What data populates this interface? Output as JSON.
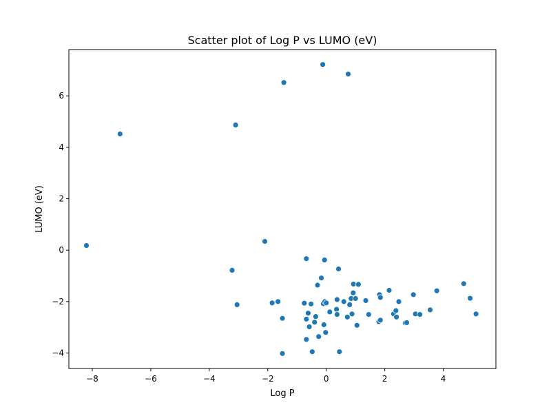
{
  "chart_data": {
    "type": "scatter",
    "title": "Scatter plot of Log P vs LUMO (eV)",
    "xlabel": "Log P",
    "ylabel": "LUMO (eV)",
    "xlim": [
      -8.8,
      5.8
    ],
    "ylim": [
      -4.6,
      7.8
    ],
    "xticks": [
      -8,
      -6,
      -4,
      -2,
      0,
      2,
      4
    ],
    "yticks": [
      -4,
      -2,
      0,
      2,
      4,
      6
    ],
    "tick_labels_x": [
      "−8",
      "−6",
      "−4",
      "−2",
      "0",
      "2",
      "4"
    ],
    "tick_labels_y": [
      "−4",
      "−2",
      "0",
      "2",
      "4",
      "6"
    ],
    "grid": false,
    "marker_color": "#1f77b4",
    "points": [
      {
        "x": -8.2,
        "y": 0.18
      },
      {
        "x": -7.05,
        "y": 4.52
      },
      {
        "x": -3.1,
        "y": 4.87
      },
      {
        "x": -3.22,
        "y": -0.78
      },
      {
        "x": -3.05,
        "y": -2.12
      },
      {
        "x": -2.1,
        "y": 0.34
      },
      {
        "x": -1.45,
        "y": 6.52
      },
      {
        "x": -0.12,
        "y": 7.22
      },
      {
        "x": 0.75,
        "y": 6.85
      },
      {
        "x": -1.85,
        "y": -2.05
      },
      {
        "x": -1.65,
        "y": -2.0
      },
      {
        "x": -1.5,
        "y": -2.65
      },
      {
        "x": -1.5,
        "y": -4.02
      },
      {
        "x": -0.75,
        "y": -2.06
      },
      {
        "x": -0.68,
        "y": -0.33
      },
      {
        "x": -0.68,
        "y": -2.68
      },
      {
        "x": -0.68,
        "y": -3.47
      },
      {
        "x": -0.62,
        "y": -2.45
      },
      {
        "x": -0.58,
        "y": -2.98
      },
      {
        "x": -0.52,
        "y": -2.09
      },
      {
        "x": -0.48,
        "y": -3.95
      },
      {
        "x": -0.4,
        "y": -2.8
      },
      {
        "x": -0.36,
        "y": -2.58
      },
      {
        "x": -0.3,
        "y": -1.36
      },
      {
        "x": -0.26,
        "y": -3.36
      },
      {
        "x": -0.17,
        "y": -1.08
      },
      {
        "x": -0.1,
        "y": -2.08
      },
      {
        "x": -0.08,
        "y": -2.9
      },
      {
        "x": -0.06,
        "y": -0.38
      },
      {
        "x": -0.05,
        "y": -2.0
      },
      {
        "x": -0.02,
        "y": -3.2
      },
      {
        "x": 0.0,
        "y": -2.05
      },
      {
        "x": 0.12,
        "y": -2.4
      },
      {
        "x": 0.35,
        "y": -2.3
      },
      {
        "x": 0.37,
        "y": -1.92
      },
      {
        "x": 0.37,
        "y": -2.5
      },
      {
        "x": 0.42,
        "y": -0.73
      },
      {
        "x": 0.45,
        "y": -3.95
      },
      {
        "x": 0.6,
        "y": -2.0
      },
      {
        "x": 0.72,
        "y": -2.6
      },
      {
        "x": 0.8,
        "y": -2.12
      },
      {
        "x": 0.85,
        "y": -1.88
      },
      {
        "x": 0.88,
        "y": -2.48
      },
      {
        "x": 0.92,
        "y": -1.66
      },
      {
        "x": 0.93,
        "y": -1.32
      },
      {
        "x": 1.0,
        "y": -1.88
      },
      {
        "x": 1.05,
        "y": -2.92
      },
      {
        "x": 1.1,
        "y": -1.33
      },
      {
        "x": 1.35,
        "y": -1.96
      },
      {
        "x": 1.45,
        "y": -2.5
      },
      {
        "x": 1.8,
        "y": -2.78
      },
      {
        "x": 1.82,
        "y": -1.73
      },
      {
        "x": 1.85,
        "y": -1.84
      },
      {
        "x": 1.85,
        "y": -2.72
      },
      {
        "x": 2.15,
        "y": -1.56
      },
      {
        "x": 2.3,
        "y": -2.48
      },
      {
        "x": 2.38,
        "y": -2.35
      },
      {
        "x": 2.4,
        "y": -2.6
      },
      {
        "x": 2.48,
        "y": -2.0
      },
      {
        "x": 2.7,
        "y": -2.83
      },
      {
        "x": 2.75,
        "y": -2.82
      },
      {
        "x": 2.98,
        "y": -1.73
      },
      {
        "x": 3.05,
        "y": -2.48
      },
      {
        "x": 3.2,
        "y": -2.5
      },
      {
        "x": 3.55,
        "y": -2.32
      },
      {
        "x": 3.78,
        "y": -1.58
      },
      {
        "x": 4.7,
        "y": -1.3
      },
      {
        "x": 4.92,
        "y": -1.87
      },
      {
        "x": 5.12,
        "y": -2.48
      }
    ]
  }
}
